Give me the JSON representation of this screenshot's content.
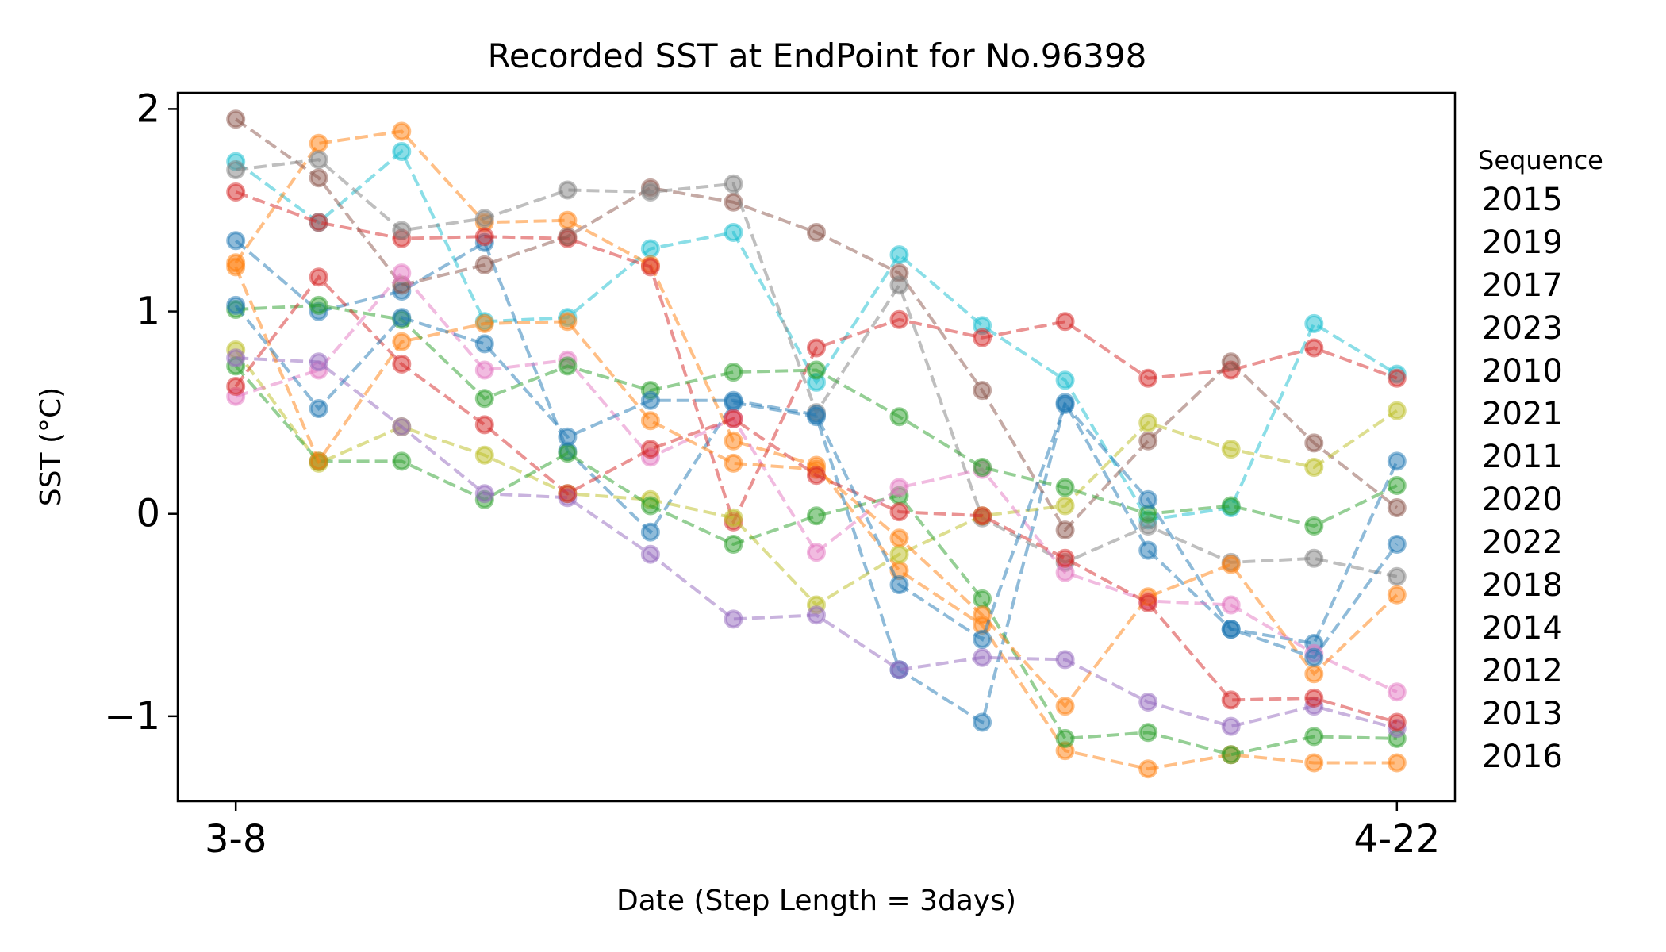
{
  "chart_data": {
    "type": "line",
    "title": "Recorded SST at EndPoint for No.96398",
    "xlabel": "Date (Step Length = 3days)",
    "ylabel": "SST (°C)",
    "x_tick_labels": [
      "3-8",
      "4-22"
    ],
    "y_ticks": [
      -1,
      0,
      1,
      2
    ],
    "y_tick_labels": [
      "−1",
      "0",
      "1",
      "2"
    ],
    "xlim": [
      -0.7,
      14.7
    ],
    "ylim": [
      -1.42,
      2.08
    ],
    "legend_title": "Sequence",
    "legend_position": "right",
    "grid": false,
    "line_style": "dashed",
    "marker": "circle",
    "series": [
      {
        "name": "2015",
        "color": "#17becf",
        "values": [
          1.74,
          1.44,
          1.79,
          0.95,
          0.97,
          1.31,
          1.39,
          0.65,
          1.28,
          0.93,
          0.66,
          -0.03,
          0.03,
          0.94,
          0.69
        ]
      },
      {
        "name": "2019",
        "color": "#ff7f0e",
        "values": [
          1.24,
          1.83,
          1.89,
          1.44,
          1.45,
          1.23,
          0.36,
          0.24,
          -0.28,
          -0.55,
          -1.17,
          -1.26,
          -1.19,
          -1.23,
          -1.23
        ]
      },
      {
        "name": "2017",
        "color": "#1f77b4",
        "values": [
          1.35,
          1.0,
          1.1,
          1.34,
          0.31,
          -0.09,
          0.55,
          0.48,
          -0.77,
          -1.03,
          0.55,
          -0.18,
          -0.57,
          -0.64,
          0.26
        ]
      },
      {
        "name": "2023",
        "color": "#d62728",
        "values": [
          1.59,
          1.44,
          1.36,
          1.37,
          1.36,
          1.22,
          -0.04,
          0.82,
          0.96,
          0.87,
          0.95,
          0.67,
          0.71,
          0.82,
          0.67
        ]
      },
      {
        "name": "2010",
        "color": "#8c564b",
        "values": [
          1.95,
          1.66,
          1.13,
          1.23,
          1.37,
          1.61,
          1.54,
          1.39,
          1.19,
          0.61,
          -0.08,
          0.36,
          0.75,
          0.35,
          0.03
        ]
      },
      {
        "name": "2021",
        "color": "#7f7f7f",
        "values": [
          1.7,
          1.75,
          1.4,
          1.46,
          1.6,
          1.59,
          1.63,
          0.5,
          1.13,
          -0.02,
          -0.24,
          -0.06,
          -0.24,
          -0.22,
          -0.31
        ]
      },
      {
        "name": "2011",
        "color": "#bcbd22",
        "values": [
          0.81,
          0.25,
          0.43,
          0.29,
          0.1,
          0.07,
          -0.02,
          -0.45,
          -0.2,
          -0.01,
          0.04,
          0.45,
          0.32,
          0.23,
          0.51
        ]
      },
      {
        "name": "2020",
        "color": "#2ca02c",
        "values": [
          0.73,
          0.26,
          0.26,
          0.07,
          0.3,
          0.04,
          -0.15,
          -0.01,
          0.09,
          -0.42,
          -1.11,
          -1.08,
          -1.19,
          -1.1,
          -1.11
        ]
      },
      {
        "name": "2022",
        "color": "#e377c2",
        "values": [
          0.58,
          0.71,
          1.19,
          0.71,
          0.76,
          0.28,
          0.47,
          -0.19,
          0.13,
          0.22,
          -0.29,
          -0.43,
          -0.45,
          -0.69,
          -0.88
        ]
      },
      {
        "name": "2018",
        "color": "#9467bd",
        "values": [
          0.77,
          0.75,
          0.43,
          0.1,
          0.08,
          -0.2,
          -0.52,
          -0.5,
          -0.77,
          -0.71,
          -0.72,
          -0.93,
          -1.05,
          -0.95,
          -1.06
        ]
      },
      {
        "name": "2014",
        "color": "#ff7f0e",
        "values": [
          1.22,
          0.26,
          0.85,
          0.94,
          0.95,
          0.46,
          0.25,
          0.22,
          -0.12,
          -0.5,
          -0.95,
          -0.41,
          -0.25,
          -0.79,
          -0.4
        ]
      },
      {
        "name": "2012",
        "color": "#2ca02c",
        "values": [
          1.01,
          1.03,
          0.96,
          0.57,
          0.73,
          0.61,
          0.7,
          0.71,
          0.48,
          0.23,
          0.13,
          0.0,
          0.04,
          -0.06,
          0.14
        ]
      },
      {
        "name": "2013",
        "color": "#d62728",
        "values": [
          0.63,
          1.17,
          0.74,
          0.44,
          0.1,
          0.32,
          0.47,
          0.19,
          0.01,
          -0.01,
          -0.22,
          -0.44,
          -0.92,
          -0.91,
          -1.03
        ]
      },
      {
        "name": "2016",
        "color": "#1f77b4",
        "values": [
          1.03,
          0.52,
          0.97,
          0.84,
          0.38,
          0.56,
          0.56,
          0.49,
          -0.35,
          -0.62,
          0.54,
          0.07,
          -0.57,
          -0.71,
          -0.15
        ]
      }
    ]
  }
}
